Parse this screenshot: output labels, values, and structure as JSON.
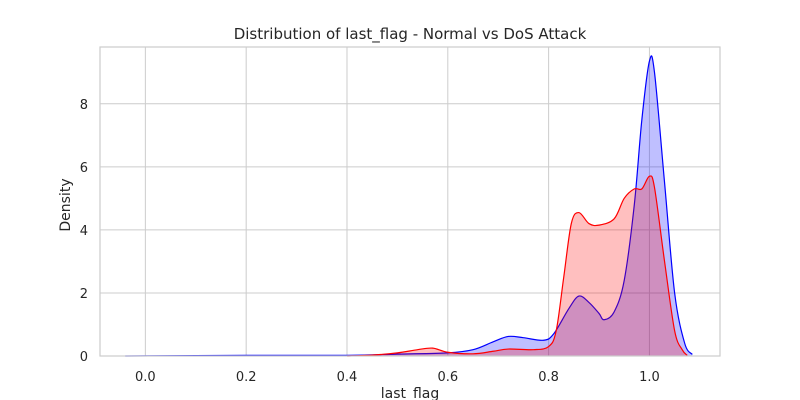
{
  "chart_data": {
    "type": "area",
    "title": "Distribution of last_flag - Normal vs DoS Attack",
    "xlabel": "last_flag",
    "ylabel": "Density",
    "xlim": [
      -0.09,
      1.14
    ],
    "ylim": [
      0,
      9.8
    ],
    "x_ticks": [
      "0.0",
      "0.2",
      "0.4",
      "0.6",
      "0.8",
      "1.0"
    ],
    "y_ticks": [
      "0",
      "2",
      "4",
      "6",
      "8"
    ],
    "grid": true,
    "legend": "none",
    "series": [
      {
        "color": "#0000ff",
        "fill": "#0000ff",
        "fill_opacity": 0.25,
        "points": [
          [
            -0.04,
            0.0
          ],
          [
            0.2,
            0.02
          ],
          [
            0.4,
            0.02
          ],
          [
            0.5,
            0.06
          ],
          [
            0.6,
            0.1
          ],
          [
            0.65,
            0.2
          ],
          [
            0.69,
            0.45
          ],
          [
            0.72,
            0.62
          ],
          [
            0.75,
            0.58
          ],
          [
            0.79,
            0.5
          ],
          [
            0.81,
            0.7
          ],
          [
            0.84,
            1.5
          ],
          [
            0.86,
            1.9
          ],
          [
            0.88,
            1.7
          ],
          [
            0.9,
            1.35
          ],
          [
            0.91,
            1.15
          ],
          [
            0.93,
            1.4
          ],
          [
            0.95,
            2.4
          ],
          [
            0.97,
            4.8
          ],
          [
            0.985,
            7.5
          ],
          [
            1.0,
            9.35
          ],
          [
            1.01,
            9.0
          ],
          [
            1.03,
            5.5
          ],
          [
            1.05,
            2.0
          ],
          [
            1.07,
            0.4
          ],
          [
            1.085,
            0.05
          ]
        ]
      },
      {
        "color": "#ff0000",
        "fill": "#ff0000",
        "fill_opacity": 0.25,
        "points": [
          [
            0.4,
            0.0
          ],
          [
            0.45,
            0.03
          ],
          [
            0.5,
            0.1
          ],
          [
            0.54,
            0.2
          ],
          [
            0.57,
            0.25
          ],
          [
            0.6,
            0.12
          ],
          [
            0.65,
            0.07
          ],
          [
            0.69,
            0.15
          ],
          [
            0.72,
            0.22
          ],
          [
            0.77,
            0.2
          ],
          [
            0.8,
            0.3
          ],
          [
            0.815,
            0.8
          ],
          [
            0.83,
            2.5
          ],
          [
            0.845,
            4.2
          ],
          [
            0.86,
            4.55
          ],
          [
            0.88,
            4.2
          ],
          [
            0.9,
            4.15
          ],
          [
            0.93,
            4.35
          ],
          [
            0.95,
            5.0
          ],
          [
            0.97,
            5.3
          ],
          [
            0.985,
            5.3
          ],
          [
            1.0,
            5.7
          ],
          [
            1.01,
            5.35
          ],
          [
            1.03,
            3.0
          ],
          [
            1.05,
            0.8
          ],
          [
            1.065,
            0.2
          ],
          [
            1.075,
            0.02
          ]
        ]
      }
    ]
  }
}
